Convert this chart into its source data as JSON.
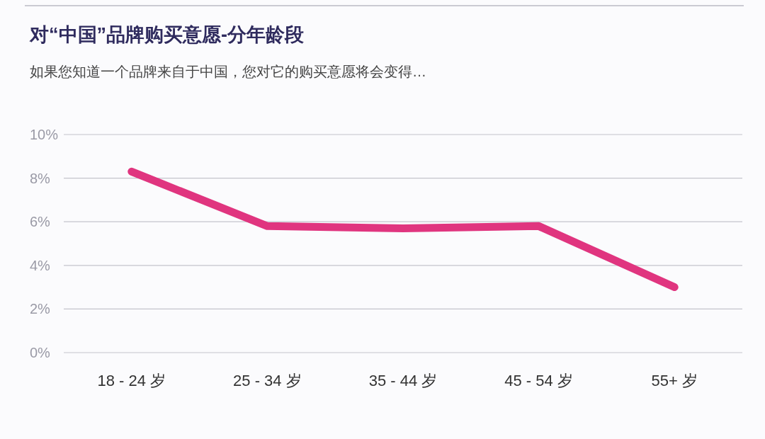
{
  "chart_data": {
    "type": "line",
    "title": "对“中国”品牌购买意愿-分年龄段",
    "subtitle": "如果您知道一个品牌来自于中国，您对它的购买意愿将会变得…",
    "categories": [
      "18 - 24 岁",
      "25 - 34 岁",
      "35 - 44 岁",
      "45 - 54 岁",
      "55+ 岁"
    ],
    "series": [
      {
        "color": "#e0357f",
        "values": [
          8.3,
          5.8,
          5.7,
          5.8,
          3.0
        ]
      }
    ],
    "ylim": [
      0,
      10
    ],
    "yticks": [
      {
        "value": 0,
        "label": "0%"
      },
      {
        "value": 2,
        "label": "2%"
      },
      {
        "value": 4,
        "label": "4%"
      },
      {
        "value": 6,
        "label": "6%"
      },
      {
        "value": 8,
        "label": "8%"
      },
      {
        "value": 10,
        "label": "10%"
      }
    ],
    "grid": "y",
    "marker": "none"
  }
}
